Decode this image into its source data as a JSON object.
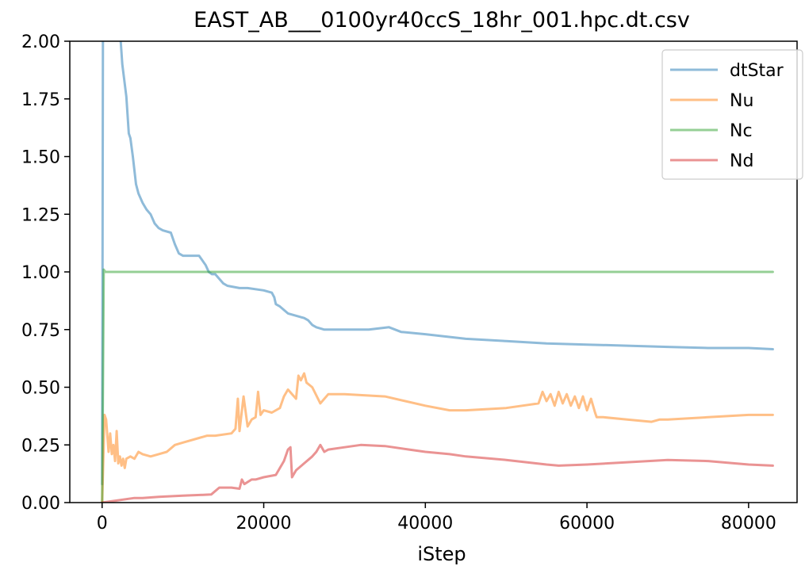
{
  "chart_data": {
    "type": "line",
    "title": "EAST_AB___0100yr40ccS_18hr_001.hpc.dt.csv",
    "xlabel": "iStep",
    "ylabel": "",
    "xlim": [
      -4000,
      86000
    ],
    "ylim": [
      0,
      2.0
    ],
    "xticks": [
      0,
      20000,
      40000,
      60000,
      80000
    ],
    "xtick_labels": [
      "0",
      "20000",
      "40000",
      "60000",
      "80000"
    ],
    "yticks": [
      0,
      0.25,
      0.5,
      0.75,
      1.0,
      1.25,
      1.5,
      1.75,
      2.0
    ],
    "ytick_labels": [
      "0.00",
      "0.25",
      "0.50",
      "0.75",
      "1.00",
      "1.25",
      "1.50",
      "1.75",
      "2.00"
    ],
    "grid": false,
    "legend_position": "top-right",
    "series": [
      {
        "name": "dtStar",
        "color": "#1f77b4",
        "x": [
          0,
          100,
          200,
          2200,
          2500,
          3000,
          3300,
          3500,
          3800,
          4200,
          4500,
          5000,
          5500,
          6000,
          6500,
          7000,
          7500,
          8500,
          9000,
          9500,
          10000,
          12000,
          12800,
          13200,
          13600,
          14000,
          15000,
          15500,
          17000,
          18000,
          20000,
          21000,
          21300,
          21500,
          22000,
          23000,
          24000,
          25000,
          25500,
          26000,
          26500,
          27500,
          30000,
          33000,
          35500,
          37000,
          40000,
          45000,
          50000,
          55000,
          60000,
          65000,
          70000,
          75000,
          80000,
          83000
        ],
        "y": [
          0.08,
          2.05,
          2.1,
          2.05,
          1.9,
          1.76,
          1.6,
          1.58,
          1.5,
          1.38,
          1.34,
          1.3,
          1.27,
          1.25,
          1.21,
          1.19,
          1.18,
          1.17,
          1.12,
          1.08,
          1.07,
          1.07,
          1.03,
          1.0,
          0.99,
          0.99,
          0.95,
          0.94,
          0.93,
          0.93,
          0.92,
          0.91,
          0.89,
          0.86,
          0.85,
          0.82,
          0.81,
          0.8,
          0.79,
          0.77,
          0.76,
          0.75,
          0.75,
          0.75,
          0.76,
          0.74,
          0.73,
          0.71,
          0.7,
          0.69,
          0.685,
          0.68,
          0.675,
          0.67,
          0.67,
          0.665
        ]
      },
      {
        "name": "Nu",
        "color": "#ff7f0e",
        "x": [
          0,
          300,
          500,
          800,
          1000,
          1200,
          1400,
          1600,
          1800,
          2000,
          2200,
          2400,
          2600,
          2800,
          3000,
          3500,
          4000,
          4500,
          5000,
          6000,
          7000,
          8000,
          9000,
          10000,
          12000,
          13000,
          14000,
          16000,
          16500,
          16800,
          17000,
          17500,
          18000,
          18500,
          19000,
          19300,
          19600,
          20000,
          21000,
          22000,
          22500,
          23000,
          23500,
          24000,
          24300,
          24600,
          25000,
          25300,
          26000,
          27000,
          28000,
          30000,
          35000,
          40000,
          43000,
          45000,
          50000,
          54000,
          54500,
          55000,
          55500,
          56000,
          56500,
          57000,
          57500,
          58000,
          58500,
          59000,
          59500,
          60000,
          60500,
          61000,
          61200,
          62000,
          65000,
          68000,
          69000,
          70000,
          75000,
          80000,
          83000
        ],
        "y": [
          0.0,
          0.38,
          0.36,
          0.22,
          0.3,
          0.21,
          0.25,
          0.18,
          0.31,
          0.17,
          0.2,
          0.16,
          0.19,
          0.15,
          0.19,
          0.2,
          0.19,
          0.22,
          0.21,
          0.2,
          0.21,
          0.22,
          0.25,
          0.26,
          0.28,
          0.29,
          0.29,
          0.3,
          0.32,
          0.45,
          0.31,
          0.46,
          0.33,
          0.36,
          0.37,
          0.48,
          0.38,
          0.4,
          0.39,
          0.41,
          0.46,
          0.49,
          0.47,
          0.45,
          0.55,
          0.53,
          0.56,
          0.52,
          0.5,
          0.43,
          0.47,
          0.47,
          0.46,
          0.42,
          0.4,
          0.4,
          0.41,
          0.43,
          0.48,
          0.44,
          0.47,
          0.42,
          0.48,
          0.43,
          0.47,
          0.42,
          0.46,
          0.41,
          0.46,
          0.4,
          0.45,
          0.39,
          0.37,
          0.37,
          0.36,
          0.35,
          0.36,
          0.36,
          0.37,
          0.38,
          0.38
        ]
      },
      {
        "name": "Nc",
        "color": "#2ca02c",
        "x": [
          0,
          200,
          400,
          600,
          1000,
          5000,
          20000,
          40000,
          60000,
          80000,
          83000
        ],
        "y": [
          0.0,
          1.01,
          1.0,
          1.0,
          1.0,
          1.0,
          1.0,
          1.0,
          1.0,
          1.0,
          1.0
        ]
      },
      {
        "name": "Nd",
        "color": "#d62728",
        "x": [
          0,
          2000,
          4000,
          5000,
          7000,
          10000,
          13500,
          14500,
          16000,
          17000,
          17300,
          17600,
          18500,
          19000,
          20000,
          21500,
          22500,
          23000,
          23300,
          23500,
          24000,
          25000,
          26000,
          26500,
          27000,
          27500,
          28000,
          30000,
          32000,
          35000,
          38000,
          40000,
          43000,
          45000,
          50000,
          55000,
          56500,
          60000,
          65000,
          70000,
          75000,
          80000,
          83000
        ],
        "y": [
          0.0,
          0.01,
          0.02,
          0.02,
          0.025,
          0.03,
          0.035,
          0.065,
          0.065,
          0.06,
          0.1,
          0.08,
          0.1,
          0.1,
          0.11,
          0.12,
          0.18,
          0.23,
          0.24,
          0.11,
          0.14,
          0.17,
          0.2,
          0.22,
          0.25,
          0.22,
          0.23,
          0.24,
          0.25,
          0.245,
          0.23,
          0.22,
          0.21,
          0.2,
          0.185,
          0.165,
          0.16,
          0.165,
          0.175,
          0.185,
          0.18,
          0.165,
          0.16
        ]
      }
    ]
  }
}
